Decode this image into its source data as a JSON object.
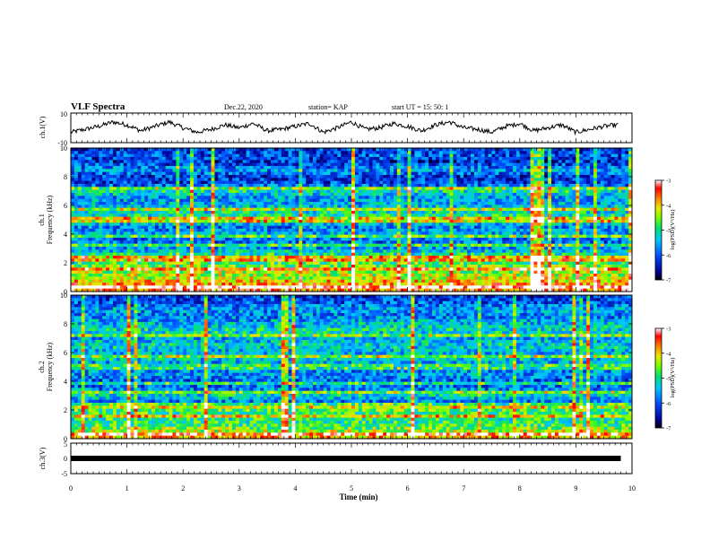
{
  "header": {
    "title": "VLF Spectra",
    "date": "Dec.22, 2020",
    "station": "station= KAP",
    "start": "start  UT  =   15: 50: 1"
  },
  "chart_data": [
    {
      "type": "line",
      "name": "ch1-waveform",
      "ylabel": "ch.1(V)",
      "ylim": [
        -10,
        10
      ],
      "ytick_labels": [
        "10",
        "-10"
      ],
      "xlim": [
        0,
        10
      ],
      "x": [
        0,
        0.25,
        0.5,
        0.75,
        1,
        1.25,
        1.5,
        1.75,
        2,
        2.25,
        2.5,
        2.75,
        3,
        3.25,
        3.5,
        3.75,
        4,
        4.25,
        4.5,
        4.75,
        5,
        5.25,
        5.5,
        5.75,
        6,
        6.25,
        6.5,
        6.75,
        7,
        7.25,
        7.5,
        7.75,
        8,
        8.25,
        8.5,
        8.75,
        9,
        9.25,
        9.5,
        9.75
      ],
      "y": [
        -3,
        -1,
        1,
        4,
        2,
        -2,
        1,
        4,
        0,
        -3,
        -1,
        2,
        0,
        3,
        -2,
        -1,
        1,
        3,
        -3,
        0,
        4,
        -1,
        0,
        3,
        1,
        -2,
        2,
        4,
        0,
        -1,
        -3,
        1,
        3,
        -2,
        0,
        2,
        -3,
        -1,
        1,
        2
      ]
    },
    {
      "type": "heatmap",
      "name": "ch1-spectrogram",
      "ylabel_top": "ch.1",
      "ylabel": "Frequency (kHz)",
      "ylim": [
        0,
        10
      ],
      "ytick_labels": [
        "0",
        "2",
        "4",
        "6",
        "8",
        "10"
      ],
      "xlim": [
        0,
        10
      ],
      "colorbar": {
        "label": "log(PSD)(V²/Hz)",
        "range": [
          -7,
          -3
        ],
        "tick_labels": [
          "-3",
          "-4",
          "-5",
          "-6",
          "-7"
        ]
      },
      "freq_profile_khz": [
        0,
        0.5,
        1,
        1.5,
        2,
        2.5,
        3,
        3.5,
        4,
        4.5,
        5,
        5.5,
        6,
        6.5,
        7,
        7.5,
        8,
        8.5,
        9,
        9.5,
        10
      ],
      "mean_log_psd_profile": [
        -3.6,
        -3.8,
        -4.3,
        -4.5,
        -4.7,
        -4.9,
        -5.6,
        -5.9,
        -5.5,
        -5.8,
        -4.9,
        -5.2,
        -5.4,
        -5.7,
        -5.1,
        -6.1,
        -6.2,
        -5.6,
        -6.3,
        -6.0,
        -6.2
      ]
    },
    {
      "type": "heatmap",
      "name": "ch2-spectrogram",
      "ylabel_top": "ch.2",
      "ylabel": "Frequency (kHz)",
      "ylim": [
        0,
        10
      ],
      "ytick_labels": [
        "0",
        "2",
        "4",
        "6",
        "8",
        "10"
      ],
      "xlim": [
        0,
        10
      ],
      "colorbar": {
        "label": "log(PSD)(V²/Hz)",
        "range": [
          -7,
          -3
        ],
        "tick_labels": [
          "-3",
          "-4",
          "-5",
          "-6",
          "-7"
        ]
      },
      "freq_profile_khz": [
        0,
        0.5,
        1,
        1.5,
        2,
        2.5,
        3,
        3.5,
        4,
        4.5,
        5,
        5.5,
        6,
        6.5,
        7,
        7.5,
        8,
        8.5,
        9,
        9.5,
        10
      ],
      "mean_log_psd_profile": [
        -3.8,
        -4.3,
        -4.9,
        -5.0,
        -4.7,
        -5.9,
        -5.2,
        -5.8,
        -6.0,
        -5.6,
        -5.9,
        -5.3,
        -5.5,
        -5.2,
        -5.6,
        -5.1,
        -5.4,
        -5.8,
        -5.6,
        -6.0,
        -6.2
      ]
    },
    {
      "type": "line",
      "name": "ch3-waveform",
      "ylabel": "ch.3(V)",
      "ylim": [
        -5,
        5
      ],
      "ytick_labels": [
        "5",
        "0",
        "-5"
      ],
      "xlim": [
        0,
        10
      ],
      "xlabel": "Time (min)",
      "xtick_labels": [
        "0",
        "1",
        "2",
        "3",
        "4",
        "5",
        "6",
        "7",
        "8",
        "9",
        "10"
      ],
      "x": [
        0,
        9.8
      ],
      "y": [
        0,
        0
      ]
    }
  ]
}
